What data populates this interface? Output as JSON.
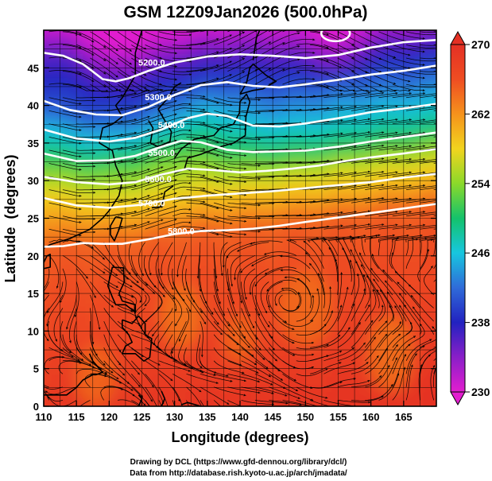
{
  "chart_data": {
    "type": "heatmap",
    "title": "GSM 12Z09Jan2026 (500.0hPa)",
    "xlabel": "Longitude (degrees)",
    "ylabel": "Latitude  (degrees)",
    "xlim": [
      110,
      170
    ],
    "ylim": [
      0,
      50
    ],
    "x_ticks": [
      110,
      115,
      120,
      125,
      130,
      135,
      140,
      145,
      150,
      155,
      160,
      165
    ],
    "y_ticks": [
      0,
      5,
      10,
      15,
      20,
      25,
      30,
      35,
      40,
      45
    ],
    "grid": true,
    "colorbar": {
      "min": 230,
      "max": 270,
      "ticks": [
        230,
        238,
        246,
        254,
        262,
        270
      ],
      "colors": [
        "#e21ecf",
        "#8a1fc8",
        "#2222c0",
        "#2f6bd8",
        "#17c6df",
        "#14c26b",
        "#8bd92a",
        "#f2d41e",
        "#f5921c",
        "#ef4d22",
        "#e43024"
      ]
    },
    "contours": [
      {
        "label": "5200.0",
        "points": [
          [
            110,
            47
          ],
          [
            113,
            46.6
          ],
          [
            116,
            45.5
          ],
          [
            119,
            43.5
          ],
          [
            121,
            43.2
          ],
          [
            123,
            43.6
          ],
          [
            126,
            44.6
          ],
          [
            130,
            45.7
          ],
          [
            135,
            46.5
          ],
          [
            140,
            46.8
          ],
          [
            145,
            46.6
          ],
          [
            150,
            46.3
          ],
          [
            155,
            46.7
          ],
          [
            160,
            47.7
          ],
          [
            165,
            48.4
          ],
          [
            170,
            48.7
          ]
        ]
      },
      {
        "label": "5300.0",
        "points": [
          [
            110,
            40.6
          ],
          [
            114,
            39.4
          ],
          [
            118,
            38.8
          ],
          [
            122,
            38.7
          ],
          [
            126,
            39.8
          ],
          [
            130,
            41.4
          ],
          [
            134,
            42.7
          ],
          [
            138,
            43.1
          ],
          [
            142,
            42.6
          ],
          [
            146,
            42.4
          ],
          [
            150,
            42.8
          ],
          [
            155,
            43.4
          ],
          [
            160,
            44.1
          ],
          [
            165,
            44.6
          ],
          [
            170,
            45.3
          ]
        ]
      },
      {
        "label": "5400.0",
        "points": [
          [
            110,
            36.8
          ],
          [
            115,
            35.6
          ],
          [
            120,
            35.2
          ],
          [
            124,
            35.7
          ],
          [
            128,
            36.8
          ],
          [
            132,
            38.3
          ],
          [
            135,
            38.9
          ],
          [
            138,
            38.6
          ],
          [
            142,
            37.3
          ],
          [
            146,
            37.2
          ],
          [
            150,
            37.6
          ],
          [
            155,
            38.3
          ],
          [
            160,
            39.1
          ],
          [
            165,
            39.6
          ],
          [
            170,
            40.2
          ]
        ]
      },
      {
        "label": "5500.0",
        "points": [
          [
            110,
            33.6
          ],
          [
            115,
            32.6
          ],
          [
            120,
            32.7
          ],
          [
            124,
            33.3
          ],
          [
            128,
            34.5
          ],
          [
            131,
            35.3
          ],
          [
            134,
            35.1
          ],
          [
            138,
            34.1
          ],
          [
            142,
            33.8
          ],
          [
            146,
            33.9
          ],
          [
            150,
            34.0
          ],
          [
            155,
            34.5
          ],
          [
            160,
            35.2
          ],
          [
            165,
            35.8
          ],
          [
            170,
            36.4
          ]
        ]
      },
      {
        "label": "5600.0",
        "points": [
          [
            110,
            30.5
          ],
          [
            115,
            29.8
          ],
          [
            120,
            29.5
          ],
          [
            124,
            29.8
          ],
          [
            128,
            30.8
          ],
          [
            132,
            31.6
          ],
          [
            136,
            31.4
          ],
          [
            140,
            31.1
          ],
          [
            144,
            31.3
          ],
          [
            148,
            31.6
          ],
          [
            152,
            32.0
          ],
          [
            156,
            32.6
          ],
          [
            160,
            33.1
          ],
          [
            165,
            33.6
          ],
          [
            170,
            34.2
          ]
        ]
      },
      {
        "label": "5700.0",
        "points": [
          [
            110,
            27.7
          ],
          [
            115,
            26.7
          ],
          [
            120,
            26.4
          ],
          [
            125,
            26.8
          ],
          [
            130,
            27.6
          ],
          [
            135,
            28.0
          ],
          [
            140,
            28.3
          ],
          [
            145,
            28.6
          ],
          [
            150,
            29.0
          ],
          [
            155,
            29.4
          ],
          [
            160,
            29.8
          ],
          [
            165,
            30.4
          ],
          [
            170,
            30.9
          ]
        ]
      },
      {
        "label": "5800.0",
        "points": [
          [
            110,
            21.2
          ],
          [
            113,
            21.3
          ],
          [
            116,
            21.7
          ],
          [
            119,
            21.6
          ],
          [
            122,
            21.6
          ],
          [
            126,
            22.2
          ],
          [
            130,
            22.9
          ],
          [
            134,
            23.3
          ],
          [
            138,
            23.4
          ],
          [
            142,
            23.6
          ],
          [
            146,
            24.0
          ],
          [
            150,
            24.5
          ],
          [
            155,
            25.1
          ],
          [
            160,
            25.7
          ],
          [
            165,
            26.3
          ],
          [
            170,
            26.9
          ]
        ]
      }
    ],
    "contour_label_positions": [
      [
        126.5,
        45.3
      ],
      [
        127.5,
        40.7
      ],
      [
        129.5,
        37.0
      ],
      [
        128.0,
        33.3
      ],
      [
        127.5,
        29.8
      ],
      [
        126.5,
        26.6
      ],
      [
        131.0,
        22.9
      ]
    ]
  },
  "credits": [
    "Drawing by DCL (https://www.gfd-dennou.org/library/dcl/)",
    "Data from http://database.rish.kyoto-u.ac.jp/arch/jmadata/"
  ]
}
